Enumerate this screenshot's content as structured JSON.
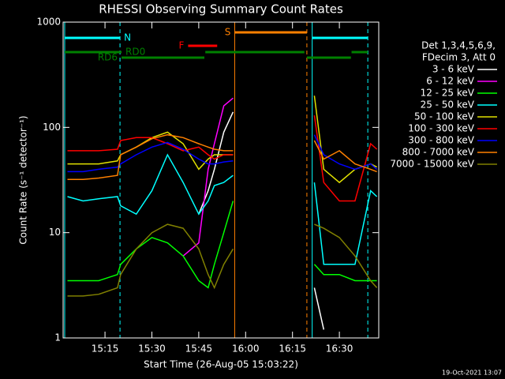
{
  "chart_data": {
    "type": "line",
    "title": "RHESSI Observing Summary Count Rates",
    "x_label": "Start Time (26-Aug-05 15:03:22)",
    "y_label": "Count Rate (s⁻¹ detector⁻¹)",
    "legend_header": [
      "Det 1,3,4,5,6,9,",
      "FDecim 3, Att 0"
    ],
    "footer": "19-Oct-2021 13:07",
    "log_y": true,
    "ylim": [
      1,
      1000
    ],
    "yticks": [
      1,
      10,
      100,
      1000
    ],
    "xlim": [
      1.6,
      102.6
    ],
    "xticks": [
      {
        "value": 15,
        "label": "15:15"
      },
      {
        "value": 30,
        "label": "15:30"
      },
      {
        "value": 45,
        "label": "15:45"
      },
      {
        "value": 60,
        "label": "16:00"
      },
      {
        "value": 75,
        "label": "16:15"
      },
      {
        "value": 90,
        "label": "16:30"
      }
    ],
    "x": [
      3,
      8,
      13,
      19,
      20,
      25,
      30,
      35,
      40,
      45,
      48,
      50,
      53,
      56,
      70,
      82,
      85,
      90,
      95,
      100,
      102
    ],
    "series": [
      {
        "name": "3 - 6 keV",
        "color": "#ffffff",
        "values": [
          null,
          null,
          null,
          null,
          null,
          null,
          null,
          null,
          null,
          15,
          25,
          40,
          90,
          140,
          null,
          3,
          1.2,
          null,
          null,
          null,
          null
        ]
      },
      {
        "name": "6 - 12 keV",
        "color": "#ff00ff",
        "values": [
          null,
          null,
          null,
          null,
          null,
          null,
          null,
          null,
          6,
          8,
          40,
          70,
          160,
          190,
          null,
          5,
          null,
          null,
          null,
          null,
          null
        ]
      },
      {
        "name": "12 - 25 keV",
        "color": "#00ff00",
        "values": [
          3.5,
          3.5,
          3.5,
          4,
          5,
          7,
          9,
          8,
          6,
          3.5,
          3,
          5,
          10,
          20,
          null,
          5,
          4,
          4,
          3.5,
          3.5,
          3.5
        ]
      },
      {
        "name": "25 - 50 keV",
        "color": "#00ffff",
        "values": [
          22,
          20,
          21,
          22,
          18,
          15,
          25,
          55,
          30,
          15,
          20,
          28,
          30,
          35,
          null,
          30,
          5,
          5,
          5,
          25,
          22
        ]
      },
      {
        "name": "50 - 100 keV",
        "color": "#e0e000",
        "values": [
          45,
          45,
          45,
          48,
          55,
          65,
          80,
          90,
          70,
          40,
          50,
          55,
          55,
          55,
          null,
          200,
          40,
          30,
          40,
          45,
          42
        ]
      },
      {
        "name": "100 - 300 keV",
        "color": "#ff0000",
        "values": [
          60,
          60,
          60,
          62,
          75,
          80,
          80,
          70,
          60,
          65,
          55,
          50,
          55,
          55,
          null,
          130,
          30,
          20,
          20,
          70,
          62
        ]
      },
      {
        "name": "300 - 800 keV",
        "color": "#0000ff",
        "values": [
          38,
          38,
          40,
          42,
          45,
          55,
          65,
          72,
          62,
          50,
          45,
          45,
          47,
          48,
          null,
          85,
          55,
          45,
          40,
          45,
          40
        ]
      },
      {
        "name": "800 - 7000 keV",
        "color": "#ff8000",
        "values": [
          32,
          32,
          33,
          35,
          55,
          65,
          78,
          85,
          80,
          70,
          65,
          62,
          60,
          60,
          null,
          75,
          50,
          60,
          45,
          40,
          38
        ]
      },
      {
        "name": "7000 - 15000 keV",
        "color": "#808000",
        "values": [
          2.5,
          2.5,
          2.6,
          3,
          4,
          7,
          10,
          12,
          11,
          7,
          4,
          3,
          5,
          7,
          null,
          12,
          11,
          9,
          6,
          3.5,
          3
        ]
      }
    ],
    "flags": [
      {
        "label": "S",
        "color": "#ff8000",
        "segments": [
          [
            56.5,
            79.6
          ]
        ]
      },
      {
        "label": "N",
        "color": "#00ffff",
        "segments": [
          [
            2.1,
            19.8
          ],
          [
            81.3,
            99.1
          ]
        ]
      },
      {
        "label": "F",
        "color": "#ff0000",
        "segments": [
          [
            41.6,
            50.9
          ]
        ]
      },
      {
        "label": "RD0",
        "color": "#008000",
        "segments": [
          [
            2.1,
            20.3
          ],
          [
            47.1,
            78.8
          ],
          [
            93.9,
            99.1
          ]
        ]
      },
      {
        "label": "RD6",
        "color": "#008000",
        "segments": [
          [
            20.3,
            46.8
          ],
          [
            79.6,
            93.7
          ]
        ]
      }
    ],
    "markers": [
      {
        "x": 2.1,
        "color": "#00ffff",
        "style": "solid"
      },
      {
        "x": 19.8,
        "color": "#00ffff",
        "style": "dashed"
      },
      {
        "x": 56.5,
        "color": "#ff8000",
        "style": "solid"
      },
      {
        "x": 79.6,
        "color": "#ff8000",
        "style": "dashed"
      },
      {
        "x": 81.3,
        "color": "#00ffff",
        "style": "solid"
      },
      {
        "x": 99.1,
        "color": "#00ffff",
        "style": "dashed"
      }
    ]
  }
}
